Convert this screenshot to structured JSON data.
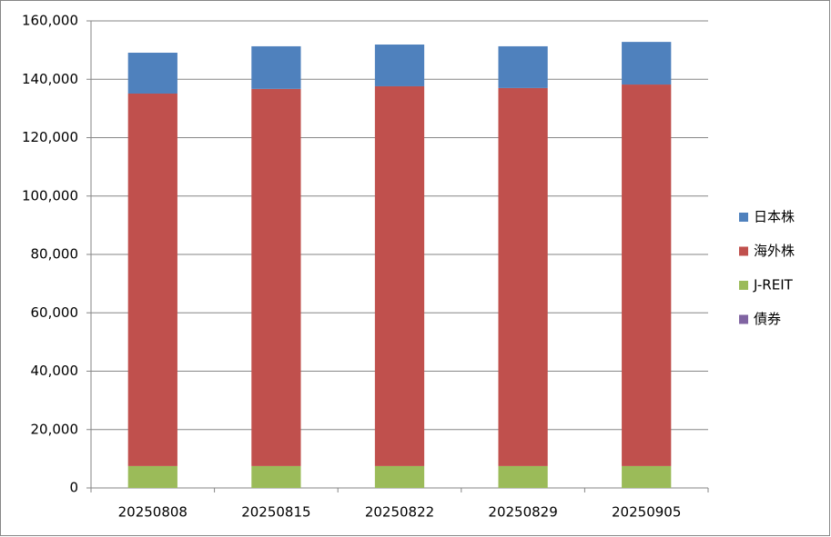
{
  "chart_data": {
    "type": "stacked_bar",
    "categories": [
      "20250808",
      "20250815",
      "20250822",
      "20250829",
      "20250905"
    ],
    "series": [
      {
        "name": "債券",
        "color": "#8064a2",
        "values": [
          0,
          0,
          0,
          0,
          0
        ]
      },
      {
        "name": "J-REIT",
        "color": "#9bbb59",
        "values": [
          7500,
          7500,
          7500,
          7500,
          7500
        ]
      },
      {
        "name": "海外株",
        "color": "#c0504d",
        "values": [
          127600,
          129200,
          130100,
          129500,
          130700
        ]
      },
      {
        "name": "日本株",
        "color": "#4f81bd",
        "values": [
          14000,
          14600,
          14300,
          14300,
          14600
        ]
      }
    ],
    "ylim": [
      0,
      160000
    ],
    "yticks": [
      0,
      {
        "value": 20000,
        "label": "20,000"
      },
      {
        "value": 40000,
        "label": "40,000"
      },
      {
        "value": 60000,
        "label": "60,000"
      },
      {
        "value": 80000,
        "label": "80,000"
      },
      {
        "value": 100000,
        "label": "100,000"
      },
      {
        "value": 120000,
        "label": "120,000"
      },
      {
        "value": 140000,
        "label": "140,000"
      },
      {
        "value": 160000,
        "label": "160,000"
      }
    ],
    "grid": true,
    "legend": "right"
  }
}
